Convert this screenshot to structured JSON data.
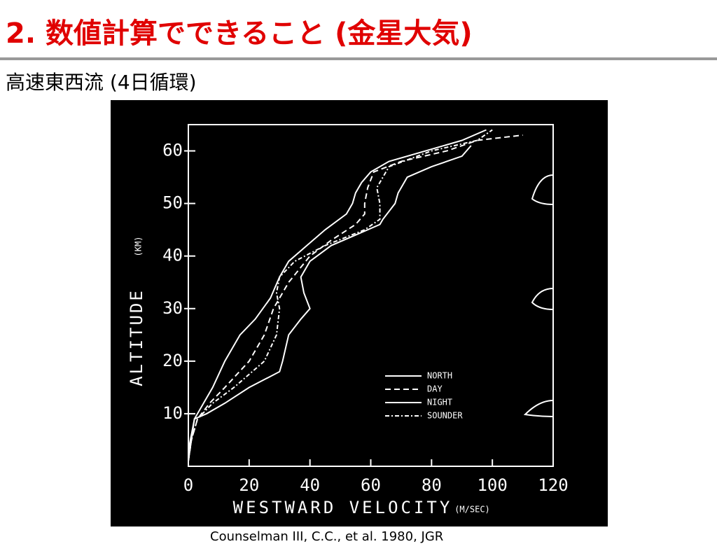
{
  "slide": {
    "title": "2. 数値計算でできること (金星大気)",
    "subtitle": "高速東西流 (4日循環)",
    "citation": "Counselman III, C.C., et al. 1980, JGR"
  },
  "chart_data": {
    "type": "line",
    "xlabel": "WESTWARD VELOCITY",
    "xunit": "(M/SEC)",
    "ylabel": "ALTITUDE",
    "yunit": "(KM)",
    "xlim": [
      0,
      120
    ],
    "ylim": [
      0,
      65
    ],
    "xticks": [
      0,
      20,
      40,
      60,
      80,
      100,
      120
    ],
    "yticks": [
      10,
      20,
      30,
      40,
      50,
      60
    ],
    "legend": "lower right",
    "series": [
      {
        "name": "NORTH",
        "color": "#ffffff",
        "dash": "solid",
        "x": [
          0,
          0,
          1,
          2,
          5,
          8,
          12,
          17,
          22,
          27,
          30,
          33,
          39,
          45,
          52,
          54,
          55,
          57,
          60,
          66,
          78,
          90,
          98
        ],
        "values": [
          1,
          3,
          6,
          9,
          12,
          15,
          20,
          25,
          28,
          32,
          36,
          39,
          42,
          45,
          48,
          50,
          52,
          54,
          56,
          58,
          60,
          62,
          64
        ]
      },
      {
        "name": "DAY",
        "color": "#ffffff",
        "dash": "dashed",
        "x": [
          0,
          1,
          3,
          7,
          12,
          20,
          25,
          28,
          33,
          40,
          47,
          55,
          58,
          58,
          59,
          61,
          70,
          85,
          95,
          110
        ],
        "values": [
          1,
          5,
          9,
          12,
          15,
          20,
          25,
          30,
          35,
          40,
          43,
          46,
          48,
          50,
          53,
          56,
          58,
          60,
          62,
          63
        ]
      },
      {
        "name": "NIGHT",
        "color": "#ffffff",
        "dash": "solid",
        "x": [
          0,
          1,
          2,
          6,
          12,
          20,
          30,
          31,
          33,
          37,
          40,
          38,
          37,
          40,
          47,
          55,
          63,
          64,
          68,
          69,
          72,
          80,
          90,
          93
        ],
        "values": [
          1,
          5,
          9,
          10,
          12,
          15,
          18,
          20,
          25,
          28,
          30,
          33,
          36,
          39,
          42,
          44,
          46,
          47,
          50,
          52,
          55,
          57,
          59,
          61
        ]
      },
      {
        "name": "SOUNDER",
        "color": "#ffffff",
        "dash": "dashdot",
        "x": [
          0,
          1,
          3,
          8,
          15,
          25,
          29,
          30,
          29,
          30,
          35,
          45,
          58,
          63,
          63,
          62,
          64,
          66,
          80,
          95,
          100
        ],
        "values": [
          1,
          5,
          9,
          12,
          15,
          20,
          25,
          30,
          33,
          36,
          39,
          42,
          45,
          47,
          50,
          53,
          55,
          57,
          60,
          62,
          64
        ]
      }
    ]
  }
}
